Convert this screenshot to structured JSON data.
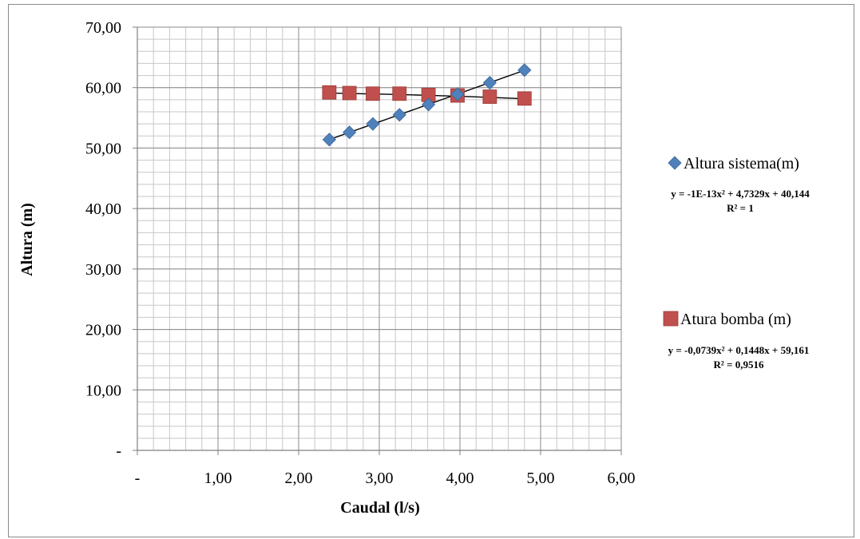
{
  "chart_data": {
    "type": "scatter",
    "xlabel": "Caudal (l/s)",
    "ylabel": "Altura (m)",
    "xlim": [
      0,
      6
    ],
    "ylim": [
      0,
      70
    ],
    "x_major_step": 1,
    "x_minor_step": 0.2,
    "y_major_step": 10,
    "y_minor_step": 2,
    "x_tick_labels": [
      "-",
      "1,00",
      "2,00",
      "3,00",
      "4,00",
      "5,00",
      "6,00"
    ],
    "y_tick_labels": [
      "-",
      "10,00",
      "20,00",
      "30,00",
      "40,00",
      "50,00",
      "60,00",
      "70,00"
    ],
    "grid": true,
    "legend_position": "right",
    "series": [
      {
        "name": "Altura sistema(m)",
        "marker": "diamond",
        "color": "#4f81bd",
        "x": [
          2.38,
          2.63,
          2.92,
          3.25,
          3.61,
          3.97,
          4.37,
          4.8
        ],
        "y": [
          51.4,
          52.6,
          54.0,
          55.5,
          57.2,
          58.9,
          60.8,
          62.9
        ],
        "trendline": {
          "equation": "y = -1E-13x² + 4,7329x + 40,144",
          "r2": "R² = 1",
          "coeffs": [
            -1e-13,
            4.7329,
            40.144
          ]
        }
      },
      {
        "name": "Atura bomba (m)",
        "marker": "square",
        "color": "#c0504d",
        "x": [
          2.38,
          2.63,
          2.92,
          3.25,
          3.61,
          3.97,
          4.37,
          4.8
        ],
        "y": [
          59.2,
          59.1,
          59.0,
          59.0,
          58.8,
          58.7,
          58.5,
          58.2
        ],
        "trendline": {
          "equation": "y = -0,0739x² + 0,1448x + 59,161",
          "r2": "R² = 0,9516",
          "coeffs": [
            -0.0739,
            0.1448,
            59.161
          ]
        }
      }
    ]
  }
}
